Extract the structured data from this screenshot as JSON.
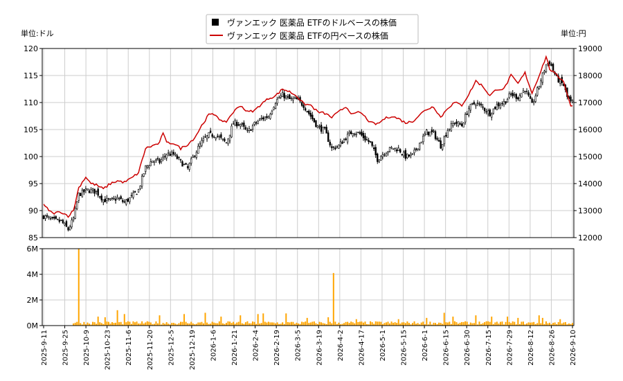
{
  "chart_data": [
    {
      "type": "candlestick",
      "legend": {
        "placement": "top-center",
        "entries": [
          {
            "label": "ヴァンエック 医薬品 ETFのドルベースの株価",
            "marker": "black-square"
          },
          {
            "label": "ヴァンエック 医薬品 ETFの円ベースの株価",
            "marker": "red-line"
          }
        ]
      },
      "left_unit": "単位:ドル",
      "right_unit": "単位:円",
      "y_left": {
        "min": 85,
        "max": 120,
        "ticks": [
          85,
          90,
          95,
          100,
          105,
          110,
          115,
          120
        ]
      },
      "y_right": {
        "min": 12000,
        "max": 19000,
        "ticks": [
          12000,
          13000,
          14000,
          15000,
          16000,
          17000,
          18000,
          19000
        ]
      },
      "x_ticks": [
        "2025-9-11",
        "2025-9-25",
        "2025-10-9",
        "2025-10-23",
        "2025-11-6",
        "2025-11-20",
        "2025-12-5",
        "2025-12-19",
        "2026-1-6",
        "2026-1-21",
        "2026-2-4",
        "2026-2-19",
        "2026-3-5",
        "2026-3-19",
        "2026-4-2",
        "2026-4-17",
        "2026-5-1",
        "2026-5-15",
        "2026-6-1",
        "2026-6-15",
        "2026-6-30",
        "2026-7-15",
        "2026-7-29",
        "2026-8-12",
        "2026-8-26",
        "2026-9-10"
      ],
      "grid": true,
      "series": [
        {
          "name": "ヴァンエック 医薬品 ETFのドルベースの株価",
          "color": "#000000",
          "close_keypoints": [
            [
              0,
              89
            ],
            [
              5,
              88.2
            ],
            [
              10,
              88
            ],
            [
              14,
              86.5
            ],
            [
              17,
              88.5
            ],
            [
              20,
              93
            ],
            [
              25,
              93.8
            ],
            [
              30,
              93.5
            ],
            [
              34,
              92
            ],
            [
              38,
              91.8
            ],
            [
              42,
              92.3
            ],
            [
              46,
              91.5
            ],
            [
              50,
              92.5
            ],
            [
              54,
              93.8
            ],
            [
              58,
              98
            ],
            [
              62,
              99.3
            ],
            [
              66,
              99
            ],
            [
              70,
              100.5
            ],
            [
              74,
              100.4
            ],
            [
              78,
              99
            ],
            [
              82,
              97.8
            ],
            [
              86,
              100.5
            ],
            [
              90,
              102.7
            ],
            [
              94,
              104
            ],
            [
              98,
              104
            ],
            [
              102,
              103
            ],
            [
              104,
              102.5
            ],
            [
              108,
              106.2
            ],
            [
              112,
              106
            ],
            [
              116,
              104.5
            ],
            [
              120,
              106
            ],
            [
              124,
              107
            ],
            [
              128,
              107.5
            ],
            [
              132,
              110.2
            ],
            [
              136,
              111.4
            ],
            [
              140,
              110.6
            ],
            [
              144,
              110.5
            ],
            [
              148,
              109.5
            ],
            [
              152,
              107.5
            ],
            [
              156,
              105.5
            ],
            [
              160,
              104.8
            ],
            [
              164,
              101.5
            ],
            [
              168,
              102
            ],
            [
              172,
              103.5
            ],
            [
              176,
              104.7
            ],
            [
              180,
              104.2
            ],
            [
              184,
              103
            ],
            [
              186,
              102.5
            ],
            [
              190,
              99.5
            ],
            [
              194,
              100.8
            ],
            [
              198,
              101.5
            ],
            [
              202,
              101.4
            ],
            [
              206,
              100
            ],
            [
              210,
              100.2
            ],
            [
              214,
              102.5
            ],
            [
              218,
              104.5
            ],
            [
              222,
              104.3
            ],
            [
              226,
              102
            ],
            [
              230,
              105
            ],
            [
              234,
              106.3
            ],
            [
              238,
              105.8
            ],
            [
              242,
              109
            ],
            [
              246,
              110
            ],
            [
              250,
              109
            ],
            [
              254,
              108
            ],
            [
              258,
              109.5
            ],
            [
              262,
              110
            ],
            [
              266,
              111.5
            ],
            [
              270,
              111
            ],
            [
              274,
              112.5
            ],
            [
              278,
              109.5
            ],
            [
              282,
              113.2
            ],
            [
              286,
              117
            ],
            [
              288,
              117.5
            ],
            [
              292,
              114.5
            ],
            [
              296,
              113.2
            ],
            [
              298,
              111
            ],
            [
              300,
              110
            ],
            [
              301,
              110
            ]
          ]
        },
        {
          "name": "ヴァンエック 医薬品 ETFの円ベースの株価",
          "color": "#cc0000",
          "keypoints": [
            [
              0,
              13200
            ],
            [
              5,
              12900
            ],
            [
              10,
              12950
            ],
            [
              14,
              12800
            ],
            [
              17,
              13000
            ],
            [
              20,
              13850
            ],
            [
              24,
              14250
            ],
            [
              27,
              14000
            ],
            [
              30,
              13950
            ],
            [
              34,
              13800
            ],
            [
              38,
              14000
            ],
            [
              42,
              14100
            ],
            [
              46,
              14050
            ],
            [
              50,
              14200
            ],
            [
              54,
              14400
            ],
            [
              58,
              15300
            ],
            [
              62,
              15400
            ],
            [
              66,
              15500
            ],
            [
              68,
              15900
            ],
            [
              70,
              15500
            ],
            [
              74,
              15500
            ],
            [
              78,
              15300
            ],
            [
              82,
              15450
            ],
            [
              86,
              15700
            ],
            [
              90,
              16150
            ],
            [
              94,
              16550
            ],
            [
              98,
              16550
            ],
            [
              102,
              16250
            ],
            [
              104,
              16300
            ],
            [
              108,
              16650
            ],
            [
              112,
              16900
            ],
            [
              116,
              16650
            ],
            [
              120,
              16700
            ],
            [
              124,
              16950
            ],
            [
              128,
              17150
            ],
            [
              132,
              17250
            ],
            [
              136,
              17500
            ],
            [
              140,
              17400
            ],
            [
              144,
              17250
            ],
            [
              148,
              16950
            ],
            [
              152,
              16900
            ],
            [
              156,
              16650
            ],
            [
              160,
              16600
            ],
            [
              164,
              16450
            ],
            [
              168,
              16650
            ],
            [
              172,
              16850
            ],
            [
              176,
              16550
            ],
            [
              180,
              16650
            ],
            [
              184,
              16400
            ],
            [
              186,
              16250
            ],
            [
              190,
              16200
            ],
            [
              194,
              16400
            ],
            [
              198,
              16500
            ],
            [
              202,
              16400
            ],
            [
              206,
              16250
            ],
            [
              210,
              16300
            ],
            [
              214,
              16550
            ],
            [
              218,
              16750
            ],
            [
              222,
              16850
            ],
            [
              226,
              16450
            ],
            [
              230,
              16800
            ],
            [
              234,
              17000
            ],
            [
              238,
              16900
            ],
            [
              242,
              17300
            ],
            [
              246,
              17800
            ],
            [
              250,
              17600
            ],
            [
              254,
              17250
            ],
            [
              258,
              17500
            ],
            [
              262,
              17500
            ],
            [
              266,
              18000
            ],
            [
              270,
              17700
            ],
            [
              274,
              18100
            ],
            [
              278,
              17350
            ],
            [
              282,
              18000
            ],
            [
              286,
              18700
            ],
            [
              288,
              18250
            ],
            [
              292,
              18000
            ],
            [
              296,
              17800
            ],
            [
              298,
              17300
            ],
            [
              300,
              16900
            ],
            [
              301,
              16900
            ]
          ]
        }
      ]
    },
    {
      "type": "bar",
      "y": {
        "min": 0,
        "max": 6000000,
        "ticks": [
          "0M",
          "2M",
          "4M",
          "6M"
        ]
      },
      "color": "#ffa500",
      "baseline": 200000,
      "spikes": [
        [
          20,
          6000000
        ],
        [
          165,
          4100000
        ],
        [
          31,
          700000
        ],
        [
          35,
          650000
        ],
        [
          42,
          1200000
        ],
        [
          46,
          900000
        ],
        [
          66,
          800000
        ],
        [
          80,
          900000
        ],
        [
          92,
          1000000
        ],
        [
          101,
          700000
        ],
        [
          112,
          800000
        ],
        [
          122,
          900000
        ],
        [
          125,
          950000
        ],
        [
          138,
          950000
        ],
        [
          150,
          600000
        ],
        [
          162,
          650000
        ],
        [
          178,
          500000
        ],
        [
          202,
          500000
        ],
        [
          218,
          600000
        ],
        [
          228,
          1000000
        ],
        [
          233,
          700000
        ],
        [
          246,
          800000
        ],
        [
          255,
          700000
        ],
        [
          264,
          700000
        ],
        [
          270,
          600000
        ],
        [
          282,
          800000
        ],
        [
          284,
          600000
        ],
        [
          294,
          500000
        ]
      ]
    }
  ]
}
